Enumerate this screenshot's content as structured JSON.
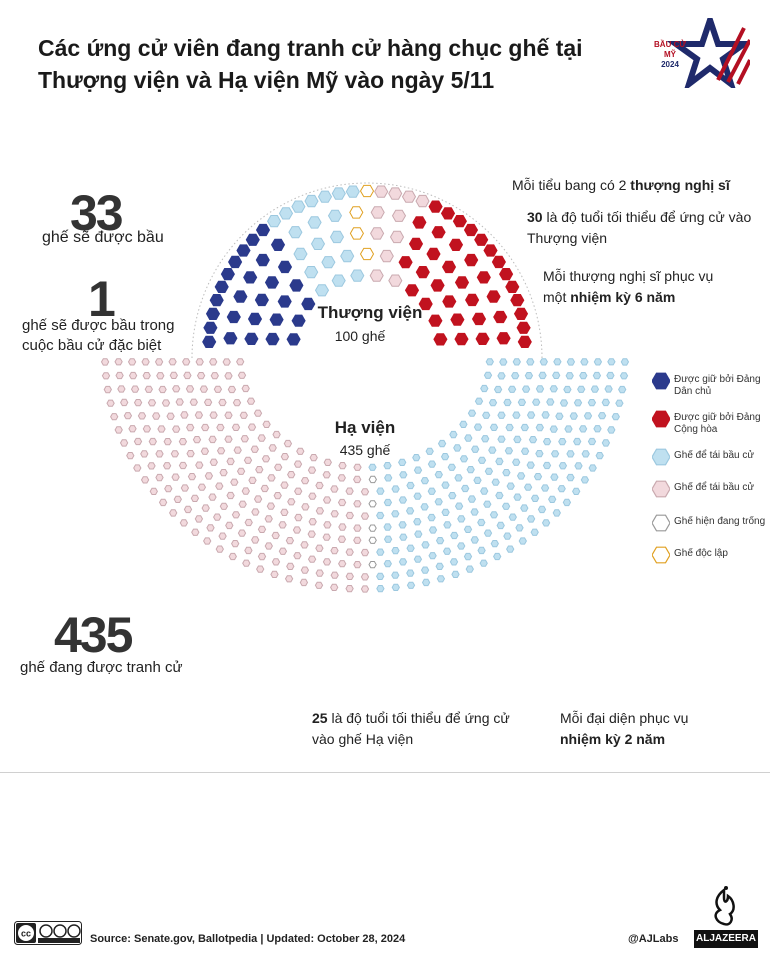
{
  "title": "Các ứng cử viên đang tranh cử hàng chục ghế tại Thượng viện và Hạ viện Mỹ vào ngày 5/11",
  "logo": {
    "line1": "BẦU CỬ MỸ",
    "line2": "2024"
  },
  "colors": {
    "democrat": "#2b3a8c",
    "republican": "#c1121f",
    "dem_election": "#bfe0f0",
    "rep_election": "#f2d9dd",
    "vacant": "#ffffff",
    "independent": "#ffffff",
    "independent_stroke": "#e0a020"
  },
  "senate": {
    "name": "Thượng viện",
    "seats_label": "100 ghế",
    "up_count": "33",
    "up_label": "ghế sẽ được bầu",
    "special_count": "1",
    "special_label": "ghế sẽ được bầu trong cuộc bầu cử đặc biệt"
  },
  "house": {
    "name": "Hạ viện",
    "seats_label": "435 ghế",
    "contested_count": "435",
    "contested_label": "ghế đang được tranh cử"
  },
  "notes": {
    "senate1_pre": "Mỗi tiểu bang có 2 ",
    "senate1_bold": "thượng nghị sĩ",
    "senate2_bold": "30",
    "senate2_post": " là độ tuổi tối thiểu để ứng cử vào Thượng viện",
    "senate3_pre": "Mỗi thượng nghị sĩ phục vụ một ",
    "senate3_bold": "nhiệm kỳ 6 năm",
    "house1_bold": "25",
    "house1_post": " là độ tuổi tối thiểu để ứng cử vào ghế Hạ viện",
    "house2_pre": "Mỗi đại diện phục vụ ",
    "house2_bold": "nhiệm kỳ 2 năm"
  },
  "legend": [
    {
      "key": "democrat",
      "label": "Được giữ bởi Đảng Dân chủ"
    },
    {
      "key": "republican",
      "label": "Được giữ bởi Đảng Cộng hòa"
    },
    {
      "key": "dem_election",
      "label": "Ghế để tái bầu cử"
    },
    {
      "key": "rep_election",
      "label": "Ghế để tái bầu cử"
    },
    {
      "key": "vacant",
      "label": "Ghế hiện đang trống"
    },
    {
      "key": "independent",
      "label": "Ghế độc lập"
    }
  ],
  "chart_data": {
    "type": "parliament",
    "senate_total": 100,
    "house_total": 435,
    "senate_seats_up": 33,
    "senate_special_election": 1,
    "house_seats_contested": 435
  },
  "footer": {
    "source": "Source: Senate.gov, Ballotpedia |  Updated: October 28, 2024",
    "handle": "@AJLabs",
    "brand": "ALJAZEERA",
    "license": "CC BY NC SA"
  }
}
